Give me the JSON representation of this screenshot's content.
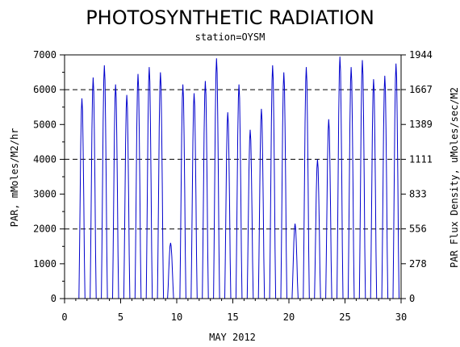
{
  "chart_data": {
    "type": "line",
    "title": "PHOTOSYNTHETIC RADIATION",
    "subtitle": "station=OYSM",
    "xlabel": "MAY 2012",
    "ylabel": "PAR, mMoles/M2/hr",
    "ylabel_right": "PAR Flux Density, uMoles/sec/M2",
    "xlim": [
      0,
      30
    ],
    "ylim": [
      0,
      7000
    ],
    "ylim_right": [
      0,
      1944
    ],
    "x_ticks": [
      "0",
      "5",
      "10",
      "15",
      "20",
      "25",
      "30"
    ],
    "y_ticks": [
      "0",
      "1000",
      "2000",
      "3000",
      "4000",
      "5000",
      "6000",
      "7000"
    ],
    "y_ticks_right": [
      "0",
      "278",
      "556",
      "833",
      "1111",
      "1389",
      "1667",
      "1944"
    ],
    "gridlines_dashed_at": [
      2000,
      4000,
      6000
    ],
    "series_color": "#0000cc",
    "daily_peaks": [
      {
        "day": 1.55,
        "peak": 5750
      },
      {
        "day": 2.55,
        "peak": 6350
      },
      {
        "day": 3.55,
        "peak": 6700
      },
      {
        "day": 4.55,
        "peak": 6150
      },
      {
        "day": 5.55,
        "peak": 5850
      },
      {
        "day": 6.55,
        "peak": 6450
      },
      {
        "day": 7.55,
        "peak": 6650
      },
      {
        "day": 8.55,
        "peak": 6500
      },
      {
        "day": 9.45,
        "peak": 1600
      },
      {
        "day": 10.55,
        "peak": 6150
      },
      {
        "day": 11.55,
        "peak": 5900
      },
      {
        "day": 12.55,
        "peak": 6250
      },
      {
        "day": 13.55,
        "peak": 6900
      },
      {
        "day": 14.55,
        "peak": 5350
      },
      {
        "day": 15.55,
        "peak": 6150
      },
      {
        "day": 16.55,
        "peak": 4850
      },
      {
        "day": 17.55,
        "peak": 5450
      },
      {
        "day": 18.55,
        "peak": 6700
      },
      {
        "day": 19.55,
        "peak": 6500
      },
      {
        "day": 20.55,
        "peak": 2150
      },
      {
        "day": 21.55,
        "peak": 6650
      },
      {
        "day": 22.55,
        "peak": 4000
      },
      {
        "day": 23.55,
        "peak": 5150
      },
      {
        "day": 24.55,
        "peak": 6950
      },
      {
        "day": 25.55,
        "peak": 6650
      },
      {
        "day": 26.55,
        "peak": 6850
      },
      {
        "day": 27.55,
        "peak": 6300
      },
      {
        "day": 28.55,
        "peak": 6400
      },
      {
        "day": 29.55,
        "peak": 6750
      }
    ]
  }
}
